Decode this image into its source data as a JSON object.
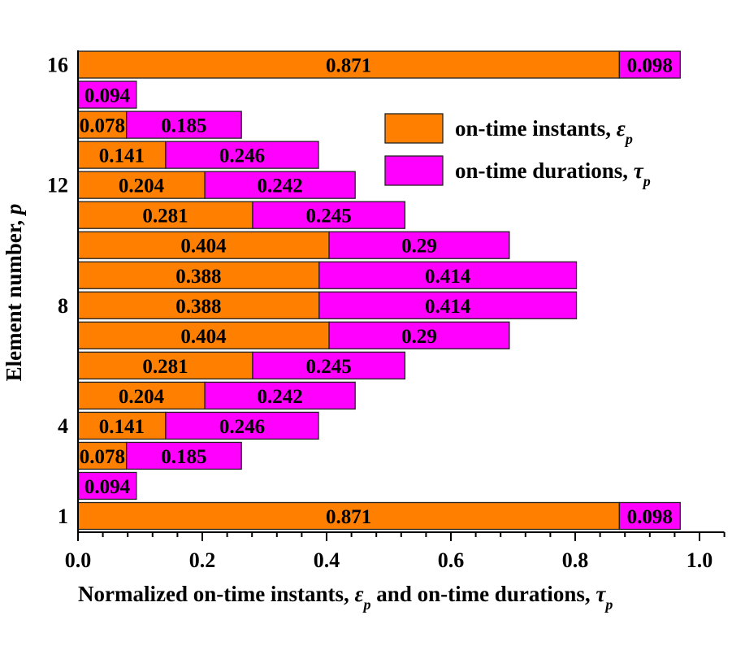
{
  "chart_data": {
    "type": "bar",
    "orientation": "horizontal",
    "stacked": true,
    "title": "",
    "xlabel": "Normalized on-time instants, ε_p and on-time durations, τ_p",
    "xlabel_parts": [
      "Normalized on-time instants, ",
      "ε",
      "p",
      "  and on-time durations, ",
      "τ",
      "p"
    ],
    "ylabel": "Element number, p",
    "ylabel_parts": [
      "Element number, ",
      "p"
    ],
    "xlim": [
      0,
      1.04
    ],
    "x_ticks": [
      "0.0",
      "0.2",
      "0.4",
      "0.6",
      "0.8",
      "1.0"
    ],
    "y_ticks": [
      "1",
      "4",
      "8",
      "12",
      "16"
    ],
    "categories": [
      1,
      2,
      3,
      4,
      5,
      6,
      7,
      8,
      9,
      10,
      11,
      12,
      13,
      14,
      15,
      16
    ],
    "grid": false,
    "legend_position": "top-right",
    "series": [
      {
        "name": "on-time instants, ε_p",
        "legend_parts": [
          "on-time instants, ",
          "ε",
          "p"
        ],
        "color": "#FF8000",
        "values": [
          0.871,
          0,
          0.078,
          0.141,
          0.204,
          0.281,
          0.404,
          0.388,
          0.388,
          0.404,
          0.281,
          0.204,
          0.141,
          0.078,
          0,
          0.871
        ],
        "labels": [
          "0.871",
          "",
          "0.078",
          "0.141",
          "0.204",
          "0.281",
          "0.404",
          "0.388",
          "0.388",
          "0.404",
          "0.281",
          "0.204",
          "0.141",
          "0.078",
          "",
          "0.871"
        ]
      },
      {
        "name": "on-time durations, τ_p",
        "legend_parts": [
          "on-time durations, ",
          "τ",
          "p"
        ],
        "color": "#FF00FF",
        "values": [
          0.098,
          0.094,
          0.185,
          0.246,
          0.242,
          0.245,
          0.29,
          0.414,
          0.414,
          0.29,
          0.245,
          0.242,
          0.246,
          0.185,
          0.094,
          0.098
        ],
        "labels": [
          "0.098",
          "0.094",
          "0.185",
          "0.246",
          "0.242",
          "0.245",
          "0.29",
          "0.414",
          "0.414",
          "0.29",
          "0.245",
          "0.242",
          "0.246",
          "0.185",
          "0.094",
          "0.098"
        ]
      }
    ]
  }
}
